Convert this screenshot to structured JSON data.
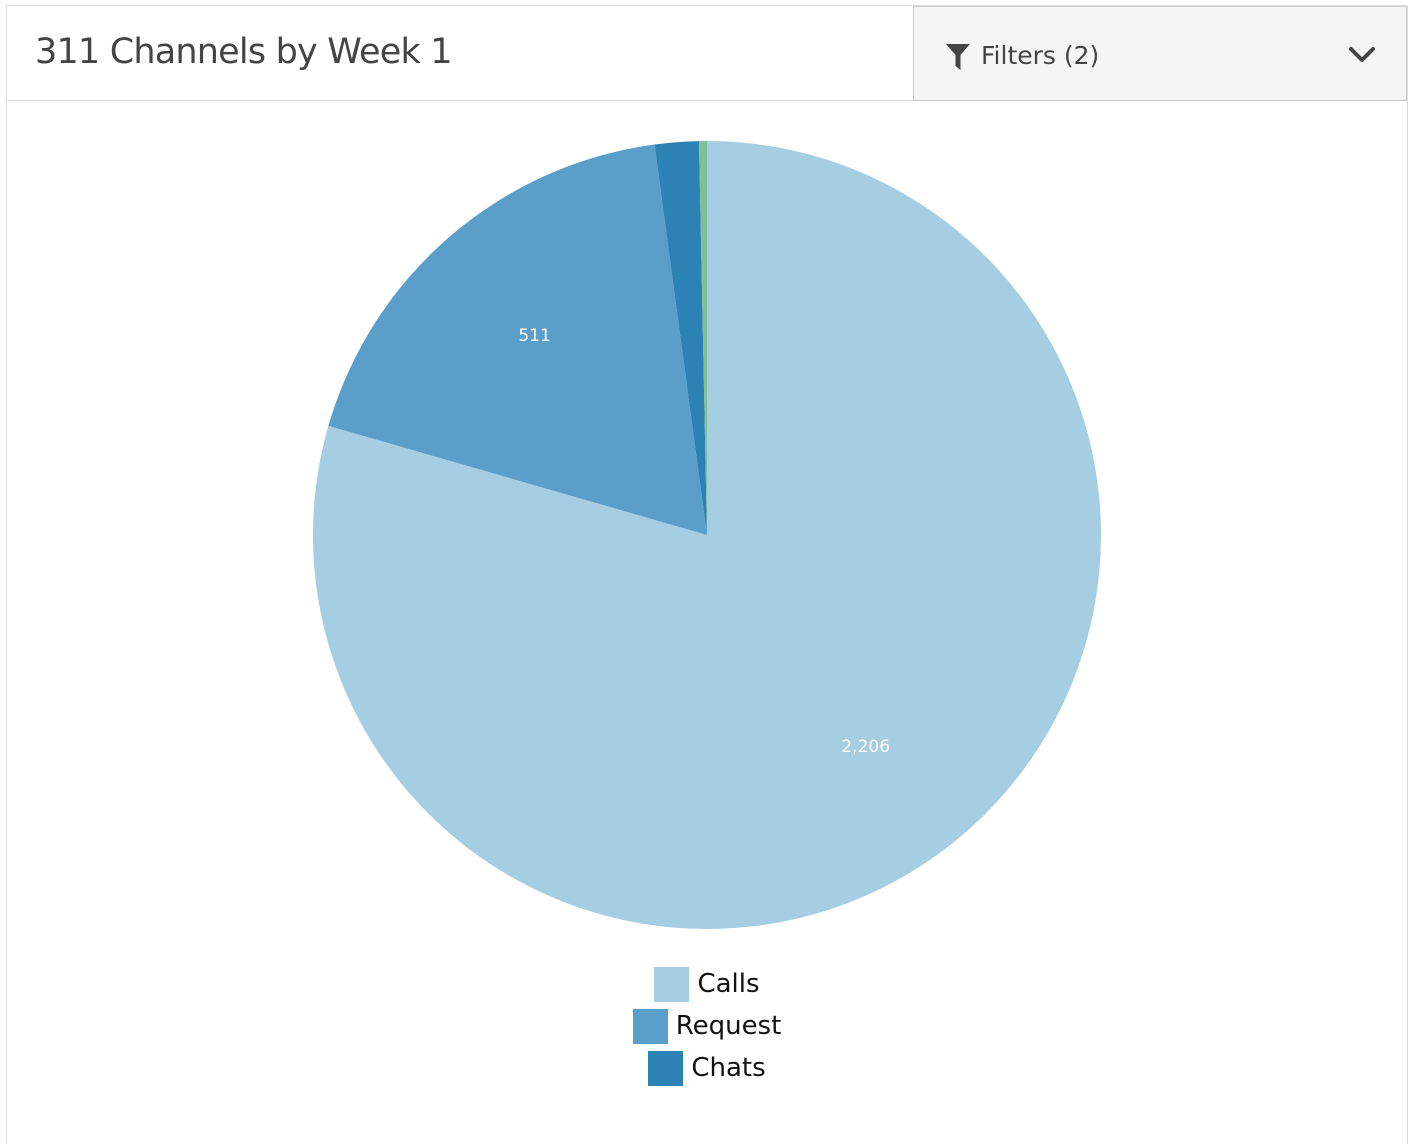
{
  "header": {
    "title": "311 Channels by Week 1",
    "filters_label": "Filters (2)",
    "filter_icon": "funnel-icon",
    "dropdown_icon": "chevron-down-icon"
  },
  "chart_data": {
    "type": "pie",
    "categories": [
      "Calls",
      "Request",
      "Chats",
      ""
    ],
    "values": [
      2206,
      511,
      50,
      9
    ],
    "data_labels": [
      "2,206",
      "511",
      "",
      ""
    ],
    "colors": [
      "#a6cee3",
      "#5b9ec9",
      "#2d82b5",
      "#7fc097"
    ],
    "legend": {
      "position": "bottom",
      "entries": [
        {
          "label": "Calls",
          "color": "#a6cee3"
        },
        {
          "label": "Request",
          "color": "#5b9ec9"
        },
        {
          "label": "Chats",
          "color": "#2d82b5"
        }
      ]
    },
    "title": "",
    "start_angle": "12 o'clock",
    "direction": "clockwise"
  }
}
